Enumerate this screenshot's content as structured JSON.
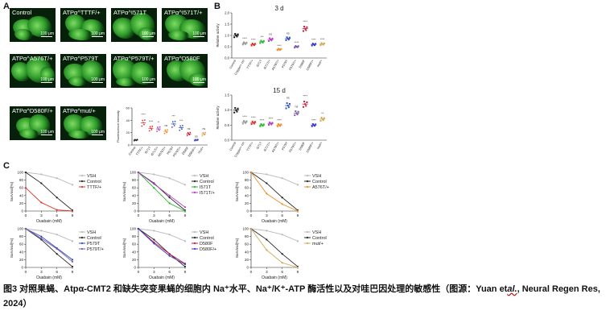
{
  "panel_a": {
    "letter": "A",
    "images": [
      {
        "label": "Control",
        "scale": "100 μm"
      },
      {
        "label": "ATPα^TTTF/+",
        "scale": "100 μm"
      },
      {
        "label": "ATPα^I571T",
        "scale": "100 μm"
      },
      {
        "label": "ATPα^I571T/+",
        "scale": "100 μm"
      },
      {
        "label": "ATPα^A576T/+",
        "scale": "100 μm"
      },
      {
        "label": "ATPα^P579T",
        "scale": "100 μm"
      },
      {
        "label": "ATPα^P579T/+",
        "scale": "100 μm"
      },
      {
        "label": "ATPα^D580F",
        "scale": "100 μm"
      },
      {
        "label": "ATPα^D580F/+",
        "scale": "100 μm"
      },
      {
        "label": "ATPα^mut/+",
        "scale": "100 μm"
      }
    ],
    "fluorescence_chart": {
      "ylabel": "Fluorescence intensity",
      "categories": [
        "Control",
        "TTTF/+",
        "I571T",
        "I571T/+",
        "A576T/+",
        "P579T",
        "P579T/+",
        "D580F",
        "D580F/+",
        "mut/+"
      ],
      "values": [
        8,
        36,
        27,
        26,
        22,
        34,
        28,
        18,
        8,
        18
      ],
      "colors": [
        "#222222",
        "#e0322a",
        "#e0322a",
        "#b53bc4",
        "#f08d25",
        "#2d4fc9",
        "#2d4fc9",
        "#c91a3c",
        "#3a3ad0",
        "#d4a85a"
      ],
      "sig": [
        "",
        "****",
        "****",
        "**",
        "ns",
        "***",
        "***",
        "ns",
        "ns",
        "ns"
      ],
      "ylim": [
        0,
        60
      ],
      "yticks": [
        "0",
        "20",
        "40",
        "60"
      ]
    }
  },
  "panel_b": {
    "letter": "B",
    "charts": [
      {
        "title": "3 d",
        "ylabel": "Relative activity",
        "ylim": [
          0,
          2.0
        ],
        "yticks": [
          "0.0",
          "0.5",
          "1.0",
          "1.5",
          "2.0"
        ],
        "categories": [
          "Control",
          "Cripple/+ ctrl",
          "TTTF/+",
          "I571T",
          "I571T/+",
          "A576T/+",
          "P579T",
          "P579T/+",
          "D580F",
          "D580F/+",
          "mut/+"
        ],
        "values": [
          1.0,
          0.65,
          0.6,
          0.72,
          0.82,
          0.38,
          0.86,
          0.5,
          1.3,
          0.6,
          0.62
        ],
        "colors": [
          "#111111",
          "#999999",
          "#e0322a",
          "#2bb82b",
          "#b53bc4",
          "#f08d25",
          "#2d4fc9",
          "#7b5aa6",
          "#c91a3c",
          "#3a3ad0",
          "#d4a85a"
        ],
        "sig": [
          "",
          "****",
          "****",
          "***",
          "ns",
          "****",
          "ns",
          "****",
          "****",
          "****",
          "****"
        ]
      },
      {
        "title": "15 d",
        "ylabel": "Relative activity",
        "ylim": [
          0,
          1.5
        ],
        "yticks": [
          "0.0",
          "0.5",
          "1.0",
          "1.5"
        ],
        "categories": [
          "Control",
          "Cripple/+ ctrl",
          "TTTF/+",
          "I571T",
          "I571T/+",
          "A576T/+",
          "P579T",
          "P579T/+",
          "D580F",
          "D580F/+",
          "mut/+"
        ],
        "values": [
          1.0,
          0.6,
          0.58,
          0.5,
          0.55,
          0.5,
          1.15,
          0.9,
          1.2,
          0.5,
          0.7
        ],
        "colors": [
          "#111111",
          "#999999",
          "#e0322a",
          "#2bb82b",
          "#b53bc4",
          "#f08d25",
          "#2d4fc9",
          "#7b5aa6",
          "#c91a3c",
          "#3a3ad0",
          "#d4a85a"
        ],
        "sig": [
          "",
          "****",
          "****",
          "****",
          "****",
          "****",
          "ns",
          "ns",
          "****",
          "****",
          "**"
        ]
      }
    ]
  },
  "panel_c": {
    "letter": "C",
    "xlabel": "Ouabain (mM)",
    "ylabel": "Survival(%)",
    "x": [
      0,
      3,
      6,
      9
    ],
    "ylim": [
      0,
      100
    ],
    "yticks": [
      "0",
      "20",
      "40",
      "60",
      "80",
      "100"
    ],
    "xticks": [
      "0",
      "3",
      "6",
      "9"
    ],
    "plots": [
      {
        "series": [
          {
            "name": "VSH",
            "color": "#b8b8b8",
            "values": [
              100,
              95,
              85,
              68
            ]
          },
          {
            "name": "Control",
            "color": "#222222",
            "values": [
              100,
              72,
              35,
              2
            ]
          },
          {
            "name": "TTTF/+",
            "color": "#e0322a",
            "values": [
              60,
              22,
              3,
              0
            ]
          }
        ]
      },
      {
        "series": [
          {
            "name": "VSH",
            "color": "#b8b8b8",
            "values": [
              100,
              95,
              85,
              68
            ]
          },
          {
            "name": "Control",
            "color": "#222222",
            "values": [
              100,
              72,
              35,
              2
            ]
          },
          {
            "name": "I571T",
            "color": "#2bb82b",
            "values": [
              100,
              60,
              20,
              0
            ]
          },
          {
            "name": "I571T/+",
            "color": "#b53bc4",
            "values": [
              100,
              70,
              40,
              10
            ]
          }
        ]
      },
      {
        "series": [
          {
            "name": "VSH",
            "color": "#b8b8b8",
            "values": [
              100,
              95,
              85,
              68
            ]
          },
          {
            "name": "Control",
            "color": "#222222",
            "values": [
              100,
              72,
              35,
              2
            ]
          },
          {
            "name": "A576T/+",
            "color": "#f08d25",
            "values": [
              100,
              45,
              18,
              0
            ]
          }
        ]
      },
      {
        "series": [
          {
            "name": "VSH",
            "color": "#b8b8b8",
            "values": [
              100,
              95,
              85,
              68
            ]
          },
          {
            "name": "Control",
            "color": "#222222",
            "values": [
              100,
              72,
              35,
              2
            ]
          },
          {
            "name": "P579T",
            "color": "#2d4fc9",
            "values": [
              100,
              80,
              50,
              20
            ]
          },
          {
            "name": "P579T/+",
            "color": "#7b5aa6",
            "values": [
              100,
              75,
              48,
              15
            ]
          }
        ]
      },
      {
        "series": [
          {
            "name": "VSH",
            "color": "#b8b8b8",
            "values": [
              100,
              95,
              85,
              68
            ]
          },
          {
            "name": "Control",
            "color": "#222222",
            "values": [
              100,
              72,
              35,
              2
            ]
          },
          {
            "name": "D580F",
            "color": "#c91a3c",
            "values": [
              100,
              65,
              35,
              10
            ]
          },
          {
            "name": "D580F/+",
            "color": "#3a3ad0",
            "values": [
              100,
              62,
              30,
              8
            ]
          }
        ]
      },
      {
        "series": [
          {
            "name": "VSH",
            "color": "#b8b8b8",
            "values": [
              100,
              95,
              85,
              68
            ]
          },
          {
            "name": "Control",
            "color": "#222222",
            "values": [
              100,
              72,
              35,
              2
            ]
          },
          {
            "name": "mut/+",
            "color": "#d4a85a",
            "values": [
              100,
              45,
              12,
              0
            ]
          }
        ]
      }
    ]
  },
  "caption": {
    "main": "图3 对照果蝇、Atpα-CMT2 和缺失突变果蝇的细胞内 Na⁺水平、Na⁺/K⁺-ATP 酶活性以及对哇巴因处理的敏感性（图源：Yuan et",
    "italic": "al.",
    "end": ", Neural Regen Res, 2024）"
  }
}
